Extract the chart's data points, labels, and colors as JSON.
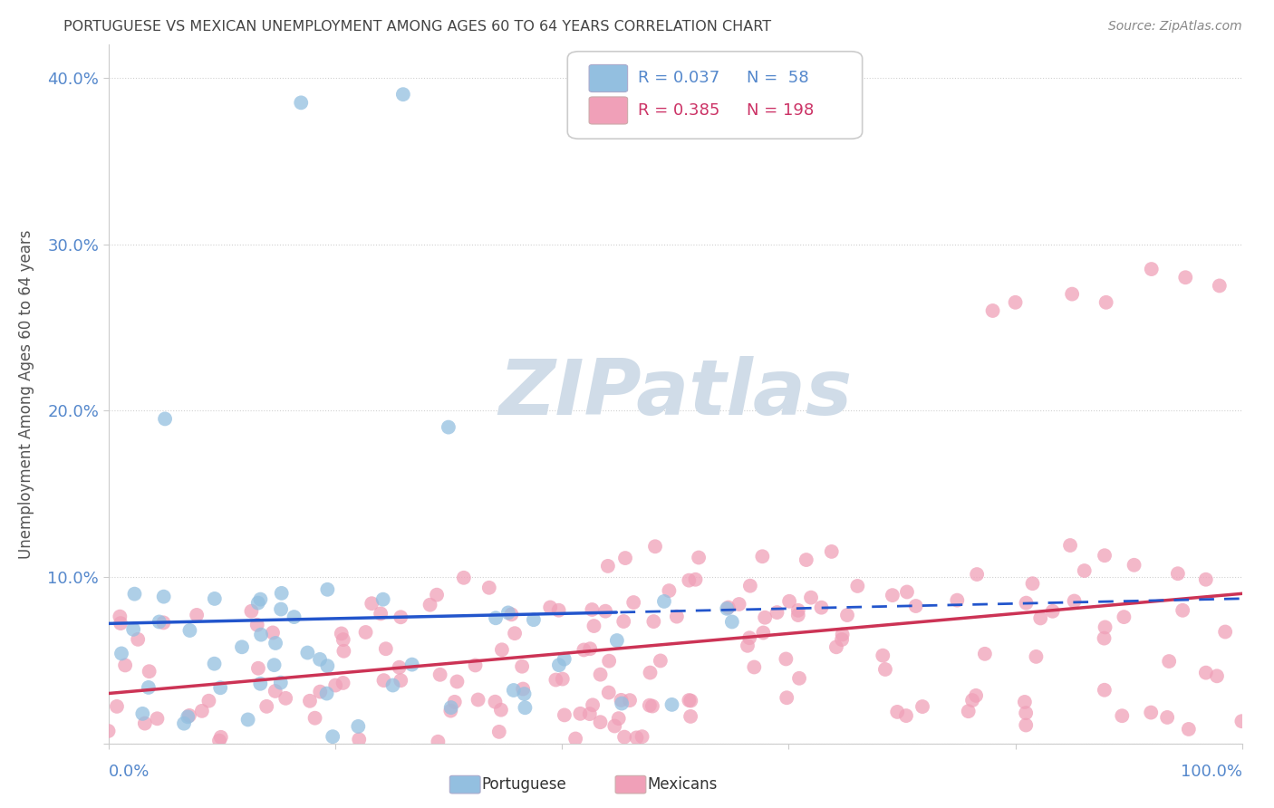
{
  "title": "PORTUGUESE VS MEXICAN UNEMPLOYMENT AMONG AGES 60 TO 64 YEARS CORRELATION CHART",
  "source": "Source: ZipAtlas.com",
  "ylabel": "Unemployment Among Ages 60 to 64 years",
  "xlim": [
    0,
    1
  ],
  "ylim": [
    0,
    0.42
  ],
  "yticks": [
    0.0,
    0.1,
    0.2,
    0.3,
    0.4
  ],
  "ytick_labels": [
    "",
    "10.0%",
    "20.0%",
    "30.0%",
    "40.0%"
  ],
  "portuguese_R": 0.037,
  "portuguese_N": 58,
  "mexican_R": 0.385,
  "mexican_N": 198,
  "portuguese_color": "#93bfe0",
  "mexican_color": "#f0a0b8",
  "portuguese_line_color": "#2255cc",
  "mexican_line_color": "#cc3355",
  "watermark_color": "#d0dce8",
  "watermark_text": "ZIPatlas",
  "grid_color": "#cccccc",
  "tick_color": "#5588cc",
  "title_color": "#444444",
  "source_color": "#888888",
  "ylabel_color": "#555555"
}
